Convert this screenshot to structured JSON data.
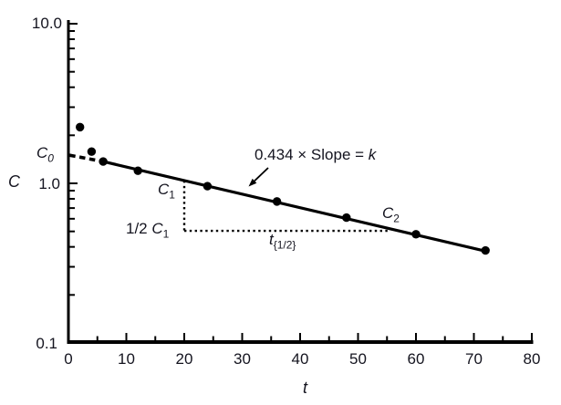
{
  "figure": {
    "background": "#ffffff",
    "line_color": "#000000",
    "text_color": "#14141f"
  },
  "chart_data": {
    "type": "scatter",
    "title": "",
    "xlabel": "t",
    "ylabel": "C",
    "x_axis": {
      "min": 0,
      "max": 80,
      "major_ticks": [
        0,
        10,
        20,
        30,
        40,
        50,
        60,
        70,
        80
      ],
      "minor_step": 5
    },
    "y_axis": {
      "scale": "log",
      "min": 0.1,
      "max": 10,
      "tick_labels": {
        "top": "10.0",
        "mid": "1.0",
        "bottom": "0.1"
      },
      "major_tick_values": [
        10,
        1
      ],
      "minor_decades": [
        1,
        0.1
      ]
    },
    "points": [
      {
        "t": 2,
        "C": 2.25
      },
      {
        "t": 4,
        "C": 1.58
      },
      {
        "t": 6,
        "C": 1.37
      },
      {
        "t": 12,
        "C": 1.2
      },
      {
        "t": 24,
        "C": 0.96
      },
      {
        "t": 36,
        "C": 0.77
      },
      {
        "t": 48,
        "C": 0.61
      },
      {
        "t": 60,
        "C": 0.48
      },
      {
        "t": 72,
        "C": 0.38
      }
    ],
    "fit_line": {
      "t_start": 6,
      "C_start": 1.37,
      "t_end": 72,
      "C_end": 0.376
    },
    "extrapolation_dashed": {
      "t_start": 0.2,
      "C_start": 1.5,
      "t_end": 6,
      "C_end": 1.37
    },
    "half_life_construction": {
      "t": 20,
      "C_top": 1.04,
      "C_bottom": 0.504,
      "t_end": 55.6
    },
    "labels": {
      "y_top": "10.0",
      "y_mid": "1.0",
      "y_bottom": "0.1",
      "ylabel": "C",
      "xlabel": "t",
      "c0": {
        "base": "C",
        "sub": "0"
      },
      "c1": {
        "base": "C",
        "sub": "1"
      },
      "half_c1": {
        "prefix": "1/2 ",
        "base": "C",
        "sub": "1"
      },
      "c2": {
        "base": "C",
        "sub": "2"
      },
      "t_half": {
        "base": "t",
        "sub": "{1/2}"
      },
      "slope_eq": {
        "text": "0.434 × Slope = ",
        "var": "k"
      }
    }
  }
}
